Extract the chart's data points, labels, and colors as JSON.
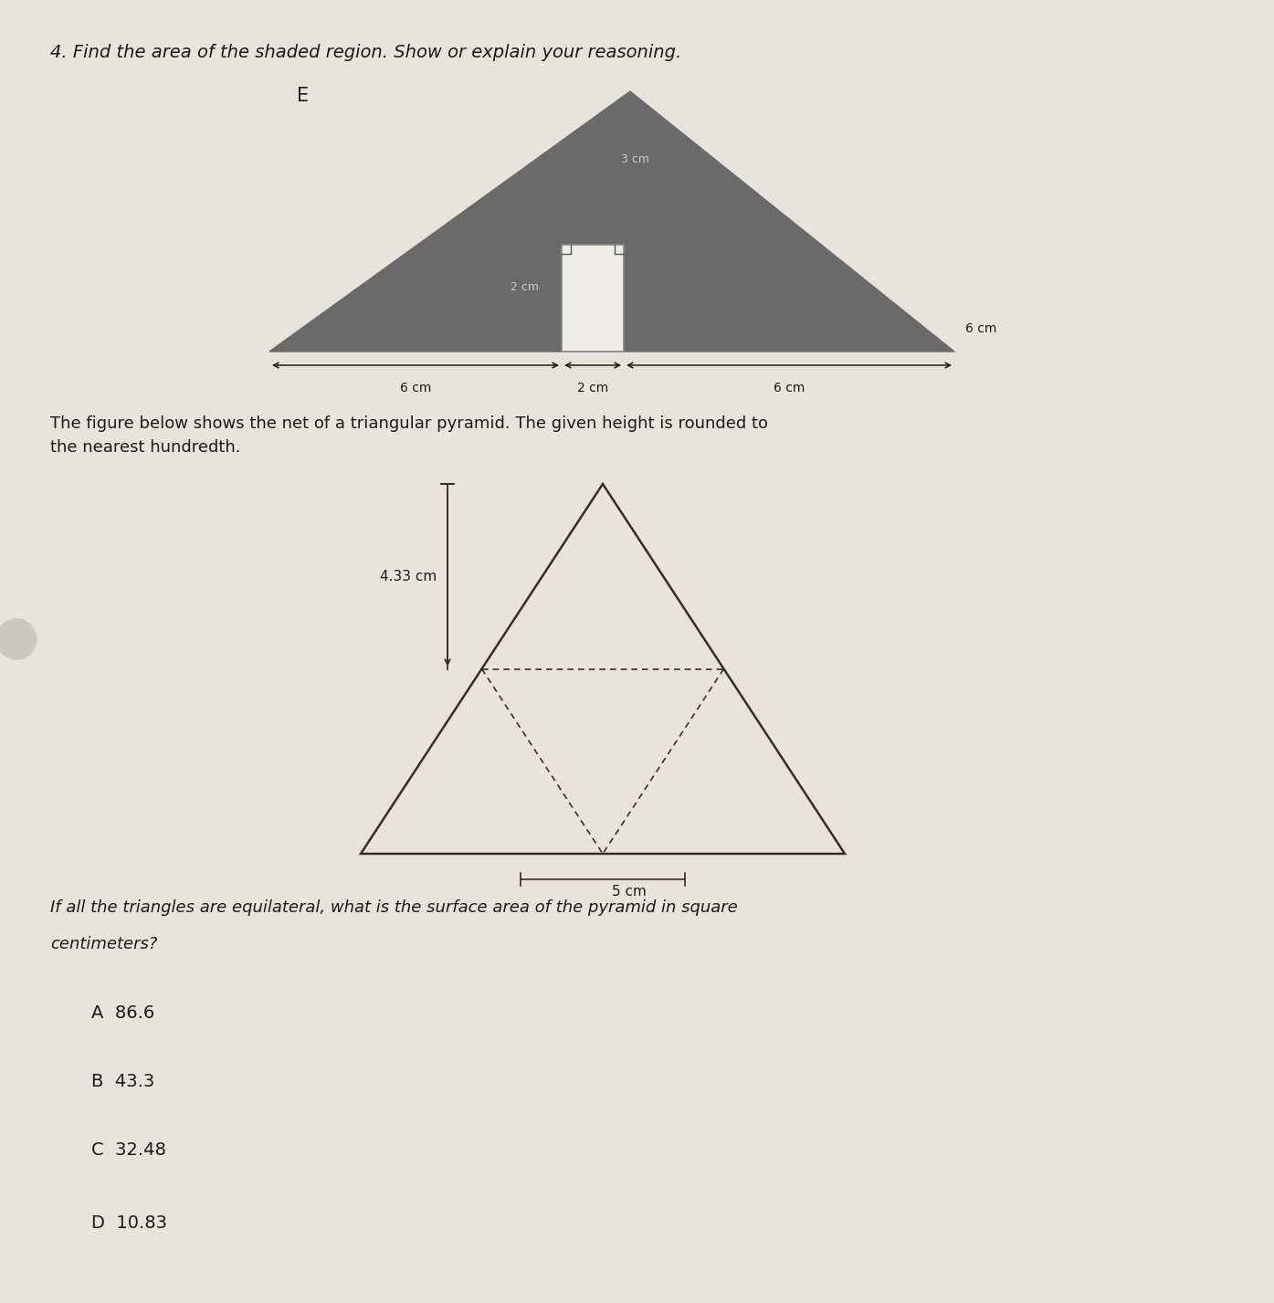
{
  "bg_color": "#e8e4dd",
  "title": "4. Find the area of the shaded region. Show or explain your reasoning.",
  "title_fontsize": 14,
  "label_E": "E",
  "triangle_shaded_color": "#6a6a6a",
  "net_triangle_color": "#3a2a2a",
  "dim_3cm_label": "3 cm",
  "dim_2cm_label": "2 cm",
  "dim_6cm_label": "6 cm",
  "dim_6cm_right_label": "6 cm",
  "text_net": "The figure below shows the net of a triangular pyramid. The given height is rounded to\nthe nearest hundredth.",
  "text_net_fontsize": 13,
  "dim_433_label": "4.33 cm",
  "dim_5cm_label": "5 cm",
  "question2_line1": "If all the triangles are equilateral, what is the surface area of the pyramid in square",
  "question2_line2": "centimeters?",
  "question2_fontsize": 13,
  "answer_A": "A  86.6",
  "answer_B": "B  43.3",
  "answer_C": "C  32.48",
  "answer_D": "D  10.83",
  "answer_fontsize": 14
}
